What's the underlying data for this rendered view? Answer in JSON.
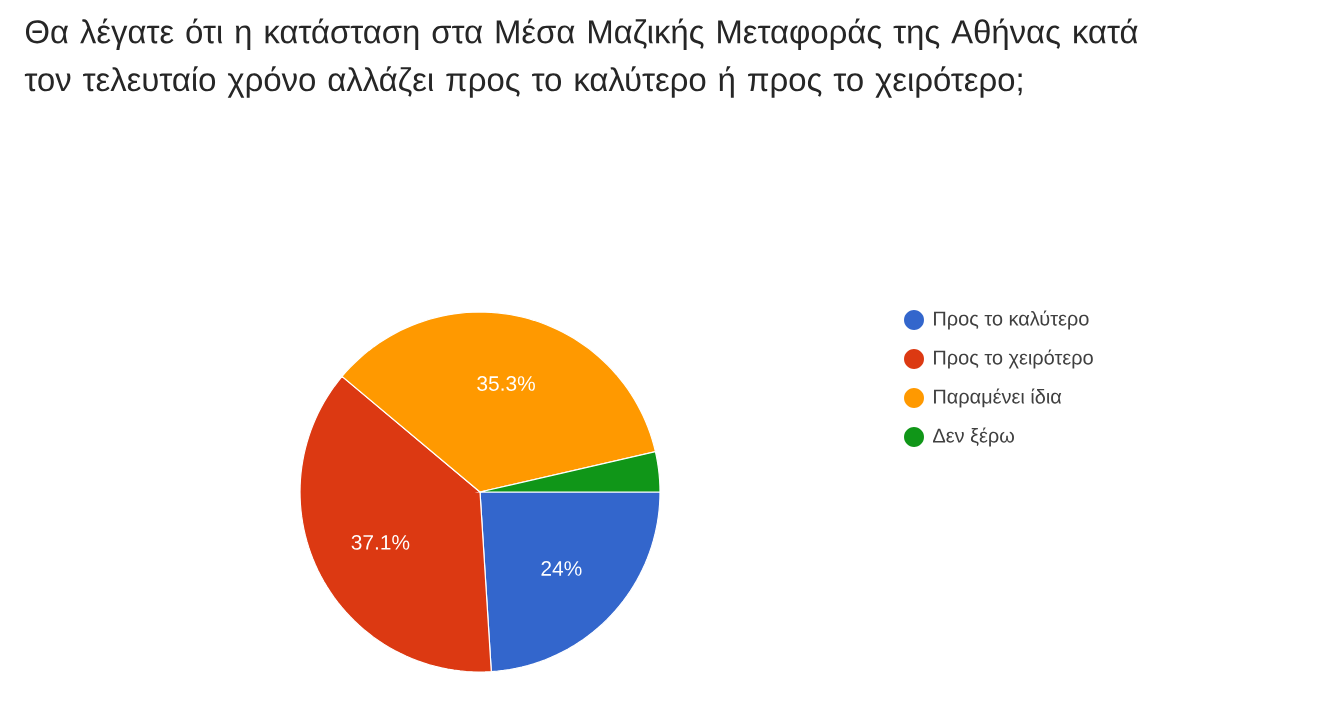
{
  "chart_data": {
    "type": "pie",
    "title": "Θα λέγατε ότι η κατάσταση στα Μέσα Μαζικής Μεταφοράς της Αθήνας κατά τον τελευταίο χρόνο αλλάζει προς το καλύτερο ή προς το χειρότερο;",
    "categories": [
      "Προς το καλύτερο",
      "Προς το χειρότερο",
      "Παραμένει ίδια",
      "Δεν ξέρω"
    ],
    "values": [
      24,
      37.1,
      35.3,
      3.6
    ],
    "colors": [
      "#3366cc",
      "#dc3912",
      "#ff9900",
      "#109618"
    ],
    "value_labels": [
      "24%",
      "37.1%",
      "35.3%",
      null
    ],
    "legend": "right"
  }
}
